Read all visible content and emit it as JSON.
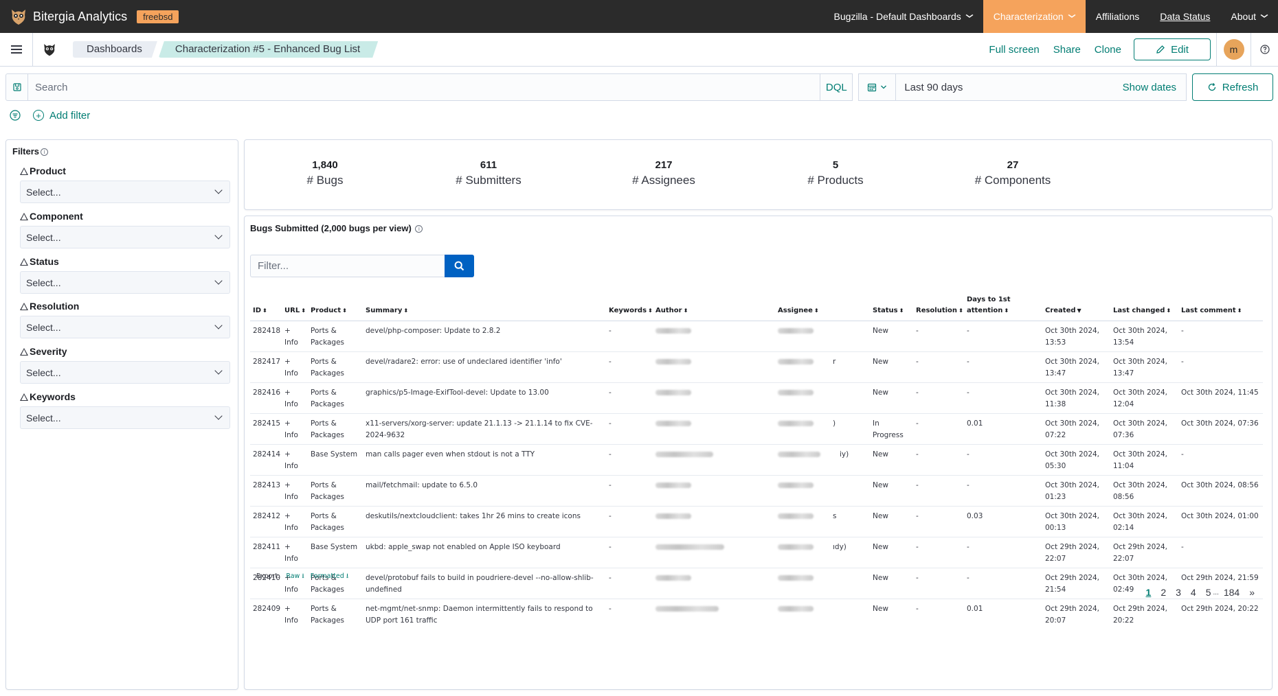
{
  "app": {
    "name": "Bitergia Analytics",
    "tenant_badge": "freebsd",
    "nav": [
      {
        "label": "Bugzilla - Default Dashboards",
        "has_dropdown": true,
        "active": false,
        "underline": false
      },
      {
        "label": "Characterization",
        "has_dropdown": true,
        "active": true,
        "underline": false
      },
      {
        "label": "Affiliations",
        "has_dropdown": false,
        "active": false,
        "underline": false
      },
      {
        "label": "Data Status",
        "has_dropdown": false,
        "active": false,
        "underline": true
      },
      {
        "label": "About",
        "has_dropdown": true,
        "active": false,
        "underline": false
      }
    ],
    "accent_color": "#f5a35c",
    "link_color": "#017d73"
  },
  "breadcrumbs": [
    "Dashboards",
    "Characterization #5 - Enhanced Bug List"
  ],
  "actions": {
    "full_screen": "Full screen",
    "share": "Share",
    "clone": "Clone",
    "edit": "Edit",
    "avatar_initial": "m"
  },
  "query": {
    "search_placeholder": "Search",
    "language": "DQL",
    "date_range": "Last 90 days",
    "show_dates": "Show dates",
    "refresh": "Refresh",
    "add_filter": "Add filter"
  },
  "filters": {
    "title": "Filters",
    "groups": [
      {
        "label": "Product",
        "placeholder": "Select..."
      },
      {
        "label": "Component",
        "placeholder": "Select..."
      },
      {
        "label": "Status",
        "placeholder": "Select..."
      },
      {
        "label": "Resolution",
        "placeholder": "Select..."
      },
      {
        "label": "Severity",
        "placeholder": "Select..."
      },
      {
        "label": "Keywords",
        "placeholder": "Select..."
      }
    ]
  },
  "metrics": [
    {
      "value": "1,840",
      "label": "# Bugs"
    },
    {
      "value": "611",
      "label": "# Submitters"
    },
    {
      "value": "217",
      "label": "# Assignees"
    },
    {
      "value": "5",
      "label": "# Products"
    },
    {
      "value": "27",
      "label": "# Components"
    }
  ],
  "bugs": {
    "title": "Bugs Submitted (2,000 bugs per view)",
    "filter_placeholder": "Filter...",
    "columns": [
      "ID",
      "URL",
      "Product",
      "Summary",
      "Keywords",
      "Author",
      "Assignee",
      "Status",
      "Resolution",
      "Days to 1st attention",
      "Created",
      "Last changed",
      "Last comment"
    ],
    "rows": [
      {
        "id": "282418",
        "url": "+ Info",
        "product": "Ports & Packages",
        "summary": "devel/php-composer: Update to 2.8.2",
        "keywords": "-",
        "status": "New",
        "resolution": "-",
        "days": "-",
        "created": "Oct 30th 2024, 13:53",
        "changed": "Oct 30th 2024, 13:54",
        "comment": "-",
        "assignee_tail": ""
      },
      {
        "id": "282417",
        "url": "+ Info",
        "product": "Ports & Packages",
        "summary": "devel/radare2: error: use of undeclared identifier 'info'",
        "keywords": "-",
        "status": "New",
        "resolution": "-",
        "days": "-",
        "created": "Oct 30th 2024, 13:47",
        "changed": "Oct 30th 2024, 13:47",
        "comment": "-",
        "assignee_tail": "r"
      },
      {
        "id": "282416",
        "url": "+ Info",
        "product": "Ports & Packages",
        "summary": "graphics/p5-Image-ExifTool-devel: Update to 13.00",
        "keywords": "-",
        "status": "New",
        "resolution": "-",
        "days": "-",
        "created": "Oct 30th 2024, 11:38",
        "changed": "Oct 30th 2024, 12:04",
        "comment": "Oct 30th 2024, 11:45",
        "assignee_tail": ""
      },
      {
        "id": "282415",
        "url": "+ Info",
        "product": "Ports & Packages",
        "summary": "x11-servers/xorg-server: update 21.1.13 -> 21.1.14 to fix CVE-2024-9632",
        "keywords": "-",
        "status": "In Progress",
        "resolution": "-",
        "days": "0.01",
        "created": "Oct 30th 2024, 07:22",
        "changed": "Oct 30th 2024, 07:36",
        "comment": "Oct 30th 2024, 07:36",
        "assignee_tail": ")"
      },
      {
        "id": "282414",
        "url": "+ Info",
        "product": "Base System",
        "summary": "man calls pager even when stdout is not a TTY",
        "keywords": "-",
        "status": "New",
        "resolution": "-",
        "days": "-",
        "created": "Oct 30th 2024, 05:30",
        "changed": "Oct 30th 2024, 11:04",
        "comment": "-",
        "assignee_tail": "iy)"
      },
      {
        "id": "282413",
        "url": "+ Info",
        "product": "Ports & Packages",
        "summary": "mail/fetchmail: update to 6.5.0",
        "keywords": "-",
        "status": "New",
        "resolution": "-",
        "days": "-",
        "created": "Oct 30th 2024, 01:23",
        "changed": "Oct 30th 2024, 08:56",
        "comment": "Oct 30th 2024, 08:56",
        "assignee_tail": ""
      },
      {
        "id": "282412",
        "url": "+ Info",
        "product": "Ports & Packages",
        "summary": "deskutils/nextcloudclient: takes 1hr 26 mins to create icons",
        "keywords": "-",
        "status": "New",
        "resolution": "-",
        "days": "0.03",
        "created": "Oct 30th 2024, 00:13",
        "changed": "Oct 30th 2024, 02:14",
        "comment": "Oct 30th 2024, 01:00",
        "assignee_tail": "s"
      },
      {
        "id": "282411",
        "url": "+ Info",
        "product": "Base System",
        "summary": "ukbd: apple_swap not enabled on Apple ISO keyboard",
        "keywords": "-",
        "status": "New",
        "resolution": "-",
        "days": "-",
        "created": "Oct 29th 2024, 22:07",
        "changed": "Oct 29th 2024, 22:07",
        "comment": "-",
        "assignee_tail": "ıdy)"
      },
      {
        "id": "282410",
        "url": "+ Info",
        "product": "Ports & Packages",
        "summary": "devel/protobuf fails to build in poudriere-devel --no-allow-shlib-undefined",
        "keywords": "-",
        "status": "New",
        "resolution": "-",
        "days": "-",
        "created": "Oct 29th 2024, 21:54",
        "changed": "Oct 30th 2024, 02:49",
        "comment": "Oct 29th 2024, 21:59",
        "assignee_tail": ""
      },
      {
        "id": "282409",
        "url": "+ Info",
        "product": "Ports & Packages",
        "summary": "net-mgmt/net-snmp: Daemon intermittently fails to respond to UDP port 161 traffic",
        "keywords": "-",
        "status": "New",
        "resolution": "-",
        "days": "0.01",
        "created": "Oct 29th 2024, 20:07",
        "changed": "Oct 29th 2024, 20:22",
        "comment": "Oct 29th 2024, 20:22",
        "assignee_tail": ""
      }
    ],
    "export_label": "Export:",
    "export_raw": "Raw",
    "export_formatted": "Formatted",
    "pages": [
      "1",
      "2",
      "3",
      "4",
      "5",
      "...",
      "184",
      "»"
    ],
    "current_page": "1"
  }
}
